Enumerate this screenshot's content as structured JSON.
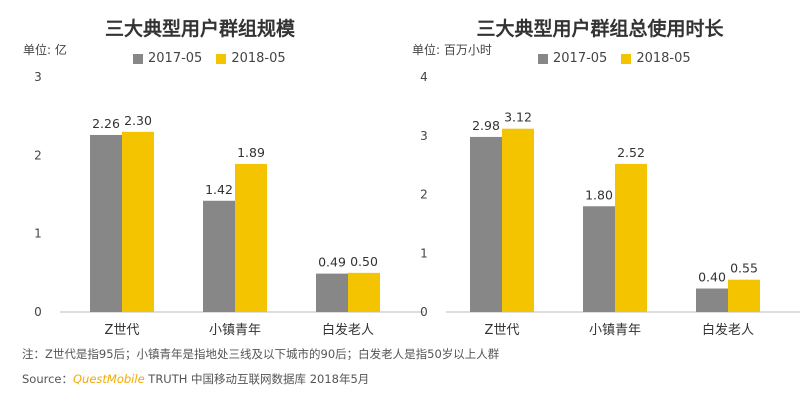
{
  "colors": {
    "series_2017": "#878787",
    "series_2018": "#f5c400",
    "brand": "#f2a900"
  },
  "chart_data": [
    {
      "type": "bar",
      "title": "三大典型用户群组规模",
      "unit_label": "单位: 亿",
      "categories": [
        "Z世代",
        "小镇青年",
        "白发老人"
      ],
      "series": [
        {
          "name": "2017-05",
          "values": [
            2.26,
            1.42,
            0.49
          ],
          "labels": [
            "2.26",
            "1.42",
            "0.49"
          ]
        },
        {
          "name": "2018-05",
          "values": [
            2.3,
            1.89,
            0.5
          ],
          "labels": [
            "2.30",
            "1.89",
            "0.50"
          ]
        }
      ],
      "ylim": [
        0,
        3
      ],
      "yticks": [
        "0",
        "1",
        "2",
        "3"
      ],
      "legend_position": "top",
      "grid": false
    },
    {
      "type": "bar",
      "title": "三大典型用户群组总使用时长",
      "unit_label": "单位: 百万小时",
      "categories": [
        "Z世代",
        "小镇青年",
        "白发老人"
      ],
      "series": [
        {
          "name": "2017-05",
          "values": [
            2.98,
            1.8,
            0.4
          ],
          "labels": [
            "2.98",
            "1.80",
            "0.40"
          ]
        },
        {
          "name": "2018-05",
          "values": [
            3.12,
            2.52,
            0.55
          ],
          "labels": [
            "3.12",
            "2.52",
            "0.55"
          ]
        }
      ],
      "ylim": [
        0,
        4
      ],
      "yticks": [
        "0",
        "1",
        "2",
        "3",
        "4"
      ],
      "legend_position": "top",
      "grid": false
    }
  ],
  "footer": {
    "note": "注：Z世代是指95后；小镇青年是指地处三线及以下城市的90后；白发老人是指50岁以上人群",
    "source_prefix": "Source：",
    "source_brand": "QuestMobile",
    "source_rest": " TRUTH 中国移动互联网数据库 2018年5月"
  }
}
